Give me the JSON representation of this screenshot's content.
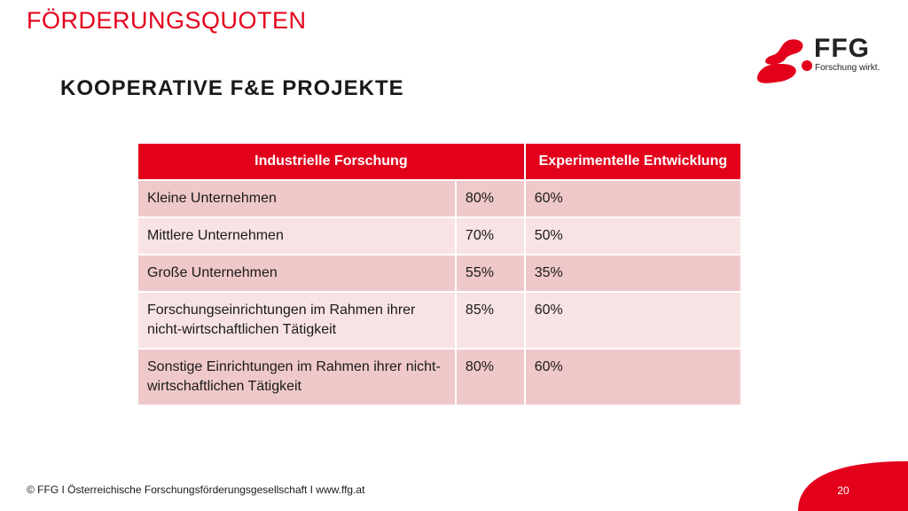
{
  "header": {
    "section_title": "FÖRDERUNGSQUOTEN",
    "slide_title": "KOOPERATIVE F&E PROJEKTE"
  },
  "logo": {
    "name": "FFG",
    "tagline": "Forschung wirkt.",
    "brand_color": "#e3001b"
  },
  "table": {
    "headers": [
      "Industrielle Forschung",
      "Experimentelle Entwicklung"
    ],
    "rows": [
      {
        "label": "Kleine Unternehmen",
        "industrial": "80%",
        "experimental": "60%"
      },
      {
        "label": "Mittlere Unternehmen",
        "industrial": "70%",
        "experimental": "50%"
      },
      {
        "label": "Große Unternehmen",
        "industrial": "55%",
        "experimental": "35%"
      },
      {
        "label": "Forschungseinrichtungen im Rahmen ihrer nicht-wirtschaftlichen Tätigkeit",
        "industrial": "85%",
        "experimental": "60%"
      },
      {
        "label": "Sonstige Einrichtungen im Rahmen ihrer nicht-wirtschaftlichen Tätigkeit",
        "industrial": "80%",
        "experimental": "60%"
      }
    ],
    "colors": {
      "header_bg": "#e3001b",
      "row_odd": "#efc8ca",
      "row_even": "#f8e3e4"
    }
  },
  "footer": {
    "copyright": "© FFG I Österreichische Forschungsförderungsgesellschaft I www.ffg.at",
    "page_number": "20"
  }
}
